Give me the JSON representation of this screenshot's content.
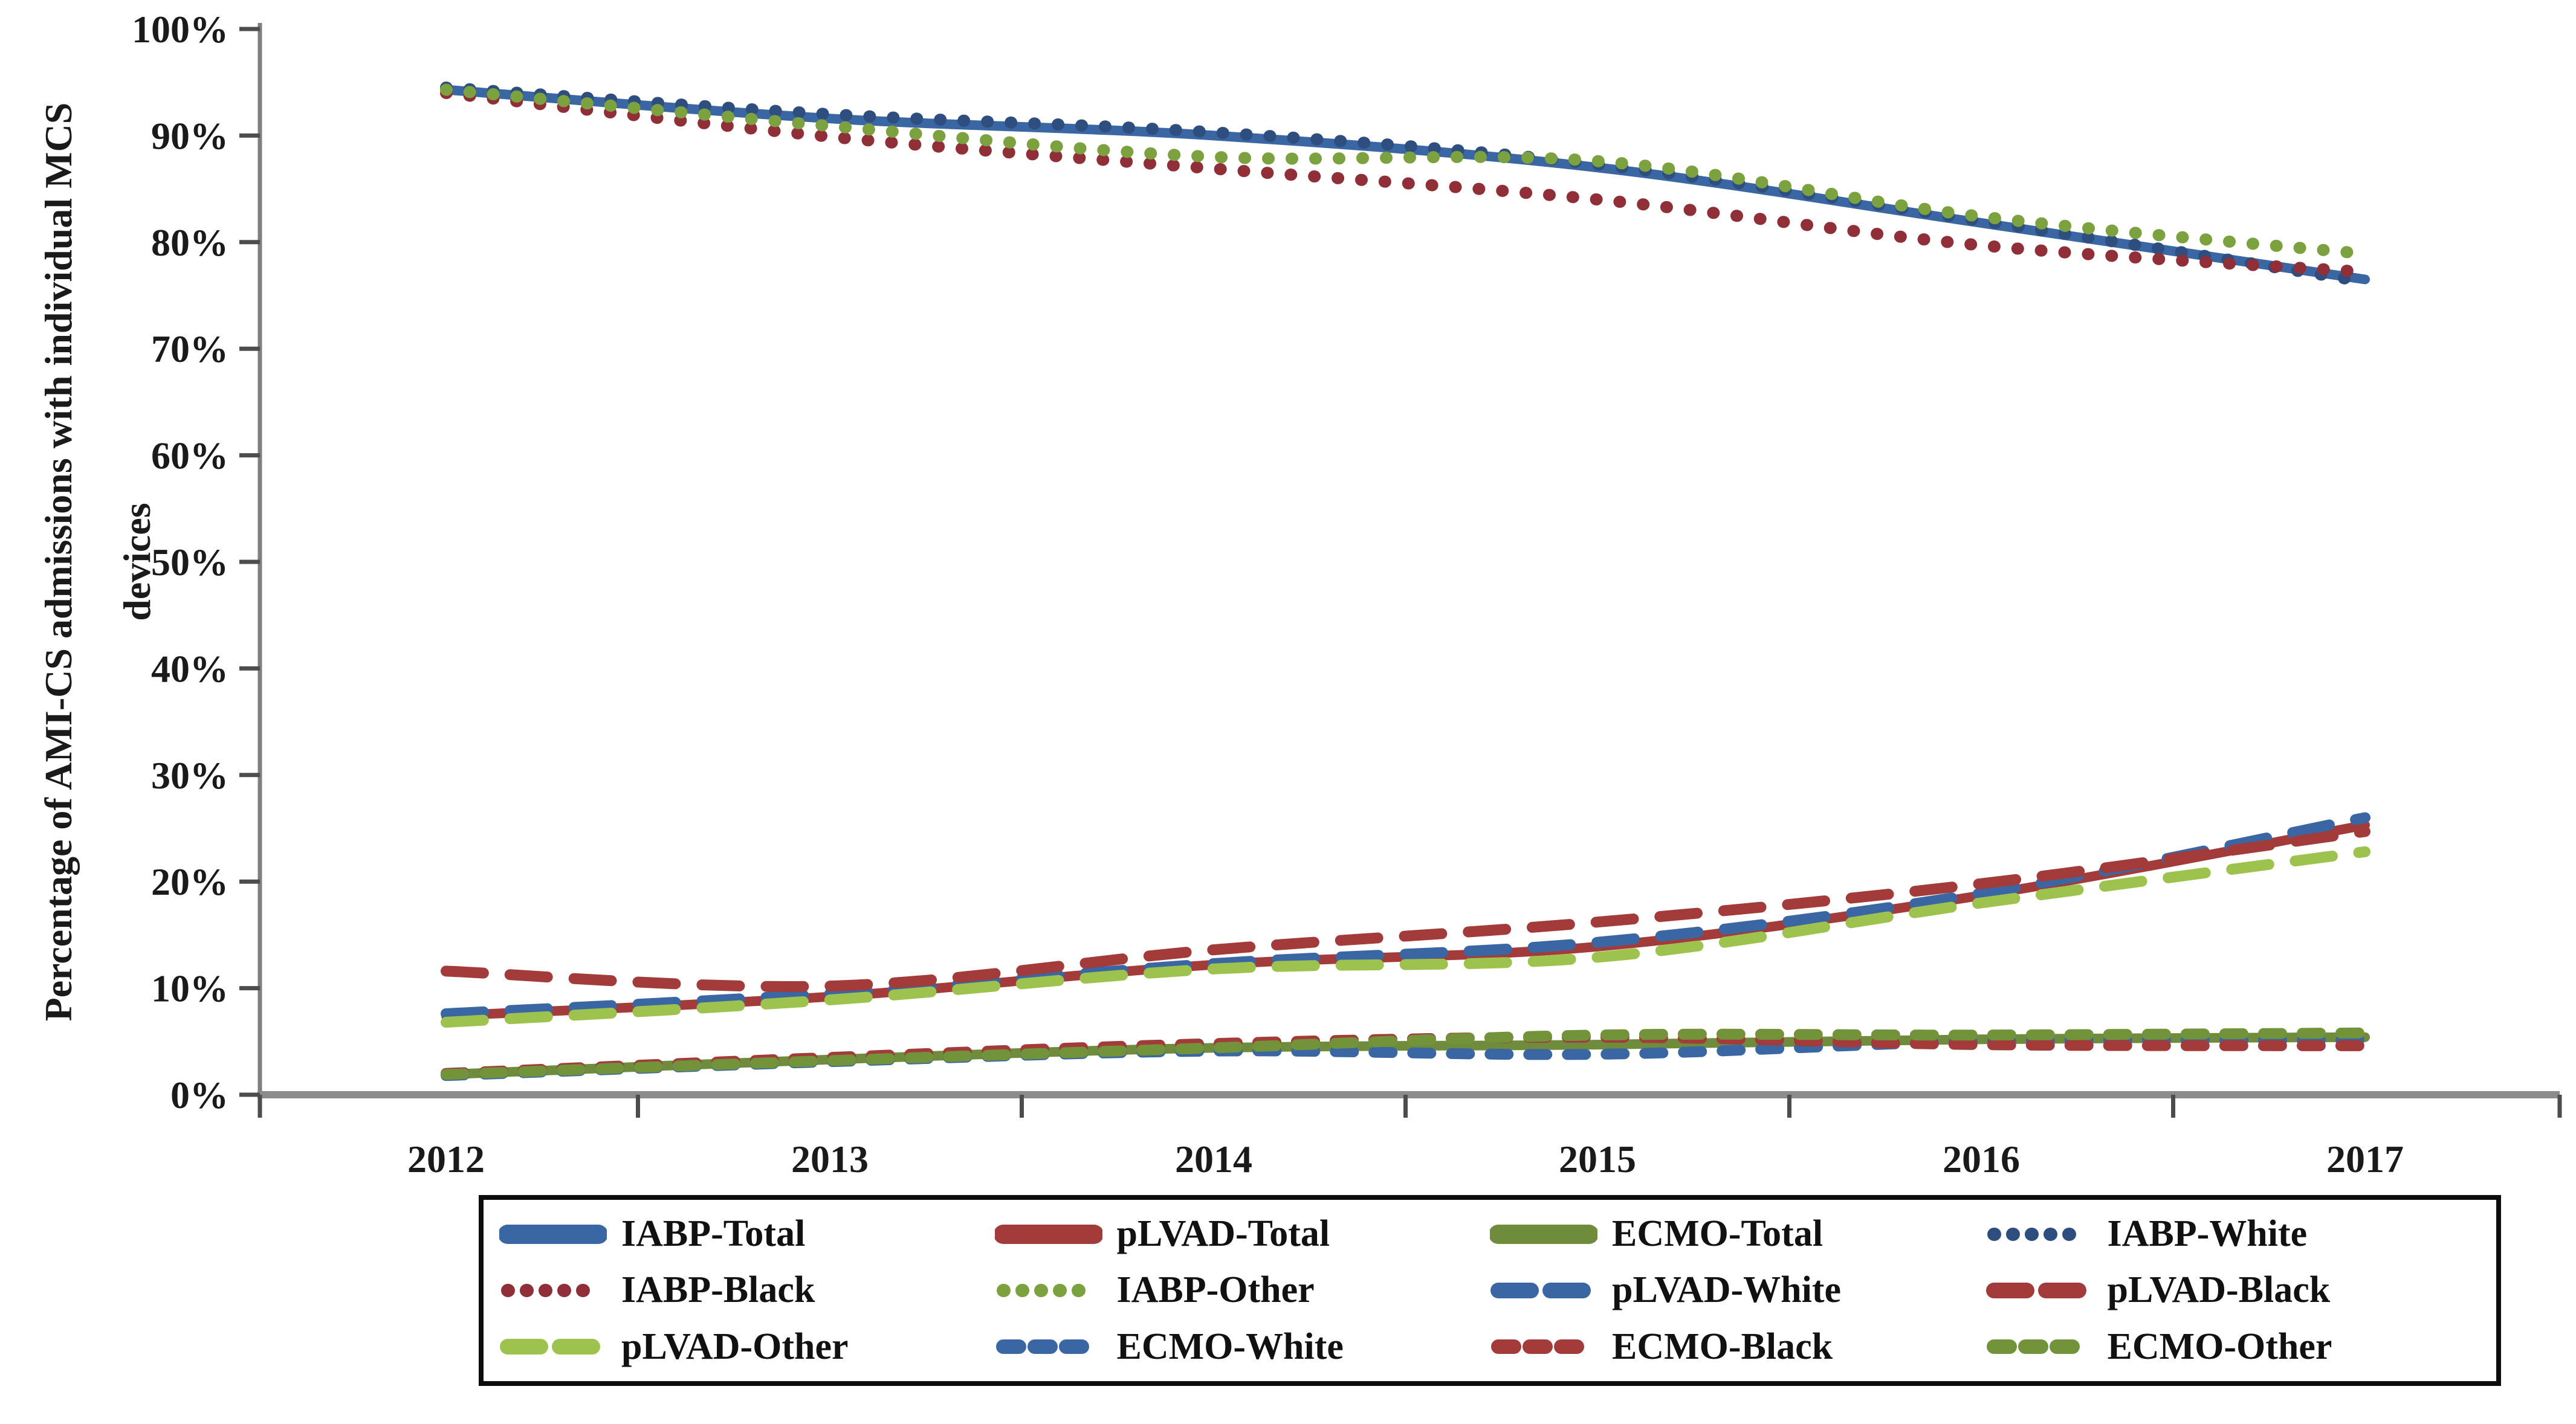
{
  "chart_data": {
    "type": "line",
    "title": "",
    "xlabel": "",
    "ylabel": "Percentage of AMI-CS admissions with individual MCS devices",
    "ylabel_lines": [
      "Percentage of AMI-CS admissions with individual MCS",
      "devices"
    ],
    "ylim": [
      0,
      100
    ],
    "grid": "off",
    "legend_position": "bottom-boxed",
    "axis_color": "#8c8c8c",
    "tick_color": "#4d4d4d",
    "y_ticks": [
      "0%",
      "10%",
      "20%",
      "30%",
      "40%",
      "50%",
      "60%",
      "70%",
      "80%",
      "90%",
      "100%"
    ],
    "categories": [
      "2012",
      "2013",
      "2014",
      "2015",
      "2016",
      "2017"
    ],
    "series": [
      {
        "name": "IABP-Total",
        "color": "#3a67a4",
        "style": "solid",
        "values": [
          94.3,
          91.6,
          90.0,
          87.0,
          81.8,
          76.5
        ]
      },
      {
        "name": "pLVAD-Total",
        "color": "#a23b3a",
        "style": "solid",
        "values": [
          7.4,
          9.2,
          12.2,
          13.9,
          18.7,
          25.3
        ]
      },
      {
        "name": "ECMO-Total",
        "color": "#6e8c3b",
        "style": "solid",
        "values": [
          1.9,
          3.3,
          4.4,
          4.7,
          5.2,
          5.4
        ]
      },
      {
        "name": "IABP-White",
        "color": "#2d4e7e",
        "style": "dot",
        "values": [
          94.5,
          92.0,
          90.3,
          87.3,
          82.0,
          76.3
        ]
      },
      {
        "name": "IABP-Black",
        "color": "#902f38",
        "style": "dot",
        "values": [
          94.0,
          89.9,
          86.9,
          84.0,
          79.7,
          77.2
        ]
      },
      {
        "name": "IABP-Other",
        "color": "#7ca23f",
        "style": "dot",
        "values": [
          94.3,
          90.9,
          88.0,
          87.6,
          82.4,
          78.9
        ]
      },
      {
        "name": "pLVAD-White",
        "color": "#3a67a4",
        "style": "long-dash",
        "values": [
          7.6,
          9.5,
          12.3,
          14.3,
          18.9,
          26.0
        ]
      },
      {
        "name": "pLVAD-Black",
        "color": "#a23b3a",
        "style": "long-dash",
        "values": [
          11.6,
          10.2,
          13.6,
          16.2,
          19.8,
          24.7
        ]
      },
      {
        "name": "pLVAD-Other",
        "color": "#9dc24d",
        "style": "long-dash",
        "values": [
          6.8,
          8.9,
          11.8,
          12.9,
          18.0,
          22.8
        ]
      },
      {
        "name": "ECMO-White",
        "color": "#3a67a4",
        "style": "short-dash",
        "values": [
          1.8,
          3.1,
          4.1,
          3.8,
          5.0,
          5.1
        ]
      },
      {
        "name": "ECMO-Black",
        "color": "#a23b3a",
        "style": "short-dash",
        "values": [
          2.0,
          3.5,
          4.8,
          5.4,
          4.7,
          4.6
        ]
      },
      {
        "name": "ECMO-Other",
        "color": "#729339",
        "style": "short-dash",
        "values": [
          1.9,
          3.2,
          4.4,
          5.6,
          5.6,
          5.8
        ]
      }
    ]
  }
}
